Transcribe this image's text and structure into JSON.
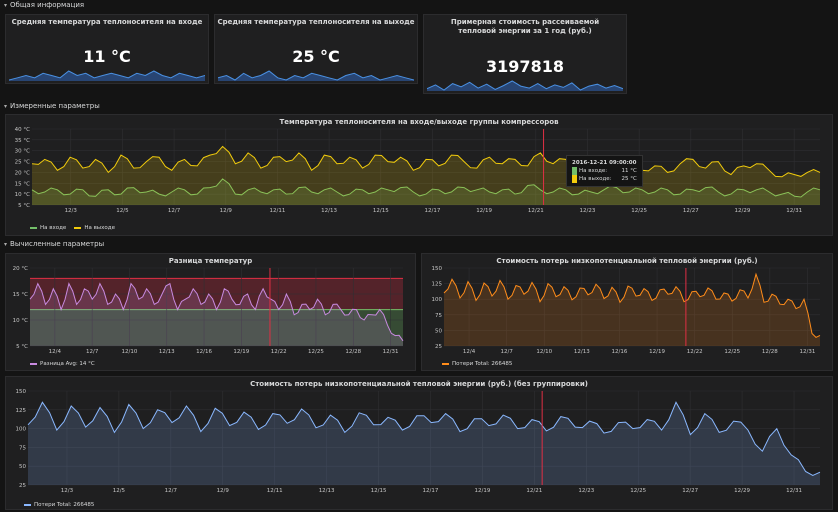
{
  "rows": {
    "general": "Общая информация",
    "measured": "Измеренные параметры",
    "computed": "Вычисленные параметры"
  },
  "stats": [
    {
      "title": "Средняя температура теплоносителя на входе",
      "value": "11 °C"
    },
    {
      "title": "Средняя температура теплоносителя на выходе",
      "value": "25 °C"
    },
    {
      "title": "Примерная стоимость рассеиваемой тепловой энергии за 1 год (руб.)",
      "value": "3197818"
    }
  ],
  "colors": {
    "green": "#73bf69",
    "yellow": "#f2cc0c",
    "purple": "#c88ae0",
    "orange": "#ff8c1a",
    "lightblue": "#8ab8ff",
    "statblue": "#3274d9",
    "redline": "#e02f44"
  },
  "chart_data": [
    {
      "id": "temps",
      "type": "line",
      "title": "Температура теплоносителя на входе/выходе группы компрессоров",
      "yticks": [
        "40 °C",
        "35 °C",
        "30 °C",
        "25 °C",
        "20 °C",
        "15 °C",
        "10 °C",
        "5 °C"
      ],
      "ylim": [
        5,
        40
      ],
      "xticks": [
        "12/3",
        "12/5",
        "12/7",
        "12/9",
        "12/11",
        "12/13",
        "12/15",
        "12/17",
        "12/19",
        "12/21",
        "12/23",
        "12/25",
        "12/27",
        "12/29",
        "12/31"
      ],
      "xlim": [
        1.5,
        32
      ],
      "marker_x": 21.3,
      "series": [
        {
          "name": "На входе",
          "color": "green",
          "values": [
            12,
            11,
            12,
            10,
            12,
            9,
            12,
            10,
            13,
            11,
            10,
            11,
            12,
            10,
            13,
            17,
            10,
            12,
            11,
            12,
            10,
            13,
            11,
            12,
            11,
            10,
            12,
            11,
            12,
            13,
            11,
            10,
            12,
            11,
            13,
            12,
            11,
            12,
            10,
            14,
            12,
            11,
            12,
            10,
            11,
            12,
            13,
            11,
            12,
            11,
            12,
            10,
            12,
            13,
            11,
            10,
            12,
            12,
            11,
            10,
            9,
            11,
            12
          ]
        },
        {
          "name": "На выходе",
          "color": "yellow",
          "values": [
            24,
            26,
            21,
            27,
            22,
            26,
            20,
            28,
            22,
            25,
            27,
            21,
            26,
            23,
            28,
            32,
            24,
            29,
            22,
            27,
            25,
            29,
            21,
            28,
            24,
            27,
            22,
            28,
            25,
            27,
            21,
            26,
            23,
            28,
            25,
            22,
            27,
            24,
            26,
            23,
            29,
            24,
            26,
            21,
            27,
            25,
            22,
            24,
            21,
            23,
            20,
            24,
            26,
            22,
            25,
            19,
            23,
            24,
            21,
            18,
            19,
            20,
            20
          ]
        }
      ],
      "tooltip": {
        "header": "2016-12-21 09:00:00",
        "rows": [
          {
            "name": "На входе:",
            "value": "11 °C"
          },
          {
            "name": "На выходе:",
            "value": "25 °C"
          }
        ]
      }
    },
    {
      "id": "diff",
      "type": "line",
      "title": "Разница температур",
      "yticks": [
        "20 °C",
        "15 °C",
        "10 °C",
        "5 °C"
      ],
      "ylim": [
        5,
        20
      ],
      "xticks": [
        "12/4",
        "12/7",
        "12/10",
        "12/13",
        "12/16",
        "12/19",
        "12/22",
        "12/25",
        "12/28",
        "12/31"
      ],
      "xlim": [
        2,
        32
      ],
      "thresholds": [
        {
          "from": 12,
          "to": 18,
          "color": "redline"
        },
        {
          "from": 5,
          "to": 12,
          "color": "green"
        }
      ],
      "marker_x": 21.3,
      "series": [
        {
          "name": "Разница",
          "color": "purple",
          "values": [
            14,
            17,
            13,
            16,
            12,
            17,
            13,
            16,
            14,
            17,
            13,
            15,
            12,
            17,
            14,
            16,
            13,
            15,
            17,
            12,
            14,
            16,
            13,
            15,
            12,
            16,
            14,
            13,
            15,
            12,
            16,
            14,
            12,
            15,
            11,
            13,
            12,
            14,
            11,
            13,
            12,
            11,
            12,
            10,
            11,
            12,
            9,
            7,
            6
          ]
        }
      ],
      "legend": "Разница  Avg: 14 °C"
    },
    {
      "id": "cost",
      "type": "line",
      "title": "Стоимость потерь низкопотенциальной тепловой энергии (руб.)",
      "yticks": [
        "150",
        "125",
        "100",
        "75",
        "50",
        "25"
      ],
      "ylim": [
        25,
        150
      ],
      "xticks": [
        "12/4",
        "12/7",
        "12/10",
        "12/13",
        "12/16",
        "12/19",
        "12/22",
        "12/25",
        "12/28",
        "12/31"
      ],
      "xlim": [
        2,
        32
      ],
      "marker_x": 21.3,
      "series": [
        {
          "name": "Потери",
          "color": "orange",
          "values": [
            110,
            132,
            102,
            128,
            98,
            126,
            105,
            130,
            100,
            122,
            108,
            127,
            96,
            125,
            104,
            120,
            99,
            118,
            107,
            124,
            101,
            119,
            95,
            121,
            105,
            117,
            98,
            115,
            108,
            120,
            96,
            112,
            104,
            118,
            100,
            110,
            97,
            115,
            102,
            140,
            95,
            108,
            92,
            100,
            85,
            100,
            45,
            42
          ]
        }
      ],
      "legend": "Потери  Total: 266485"
    },
    {
      "id": "cost_raw",
      "type": "line",
      "title": "Стоимость потерь низкопотенциальной тепловой энергии (руб.) (без группировки)",
      "yticks": [
        "150",
        "125",
        "100",
        "75",
        "50",
        "25"
      ],
      "ylim": [
        25,
        150
      ],
      "xticks": [
        "12/3",
        "12/5",
        "12/7",
        "12/9",
        "12/11",
        "12/13",
        "12/15",
        "12/17",
        "12/19",
        "12/21",
        "12/23",
        "12/25",
        "12/27",
        "12/29",
        "12/31"
      ],
      "xlim": [
        1.5,
        32
      ],
      "marker_x": 21.3,
      "series": [
        {
          "name": "Потери",
          "color": "lightblue",
          "values": [
            105,
            135,
            98,
            130,
            102,
            128,
            95,
            132,
            100,
            125,
            108,
            130,
            96,
            127,
            104,
            122,
            99,
            120,
            107,
            126,
            101,
            118,
            95,
            121,
            105,
            115,
            98,
            117,
            108,
            120,
            96,
            113,
            104,
            118,
            100,
            112,
            97,
            116,
            102,
            110,
            94,
            108,
            100,
            112,
            98,
            135,
            92,
            120,
            95,
            110,
            98,
            70,
            100,
            65,
            43,
            42
          ]
        }
      ],
      "legend": "Потери  Total: 266485"
    }
  ],
  "stat_sparks": [
    [
      9,
      10,
      11,
      10,
      12,
      11,
      10,
      13,
      11,
      12,
      10,
      11,
      12,
      11,
      10,
      12,
      11,
      13,
      11,
      10,
      12,
      11,
      10,
      11
    ],
    [
      25,
      26,
      24,
      27,
      25,
      26,
      28,
      25,
      24,
      26,
      25,
      27,
      26,
      25,
      24,
      26,
      27,
      25,
      26,
      24,
      25,
      26,
      25,
      24
    ],
    [
      62,
      68,
      60,
      70,
      65,
      72,
      63,
      69,
      61,
      67,
      74,
      66,
      63,
      70,
      62,
      68,
      64,
      71,
      60,
      66,
      69,
      63,
      67,
      62
    ]
  ]
}
